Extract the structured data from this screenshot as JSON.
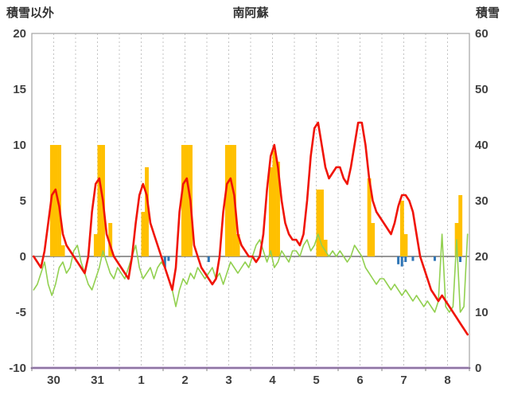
{
  "header": {
    "left_axis_title": "積雪以外",
    "title": "南阿蘇",
    "right_axis_title": "積雪"
  },
  "chart_data": {
    "type": "line",
    "title": "南阿蘇",
    "left_axis": {
      "label": "積雪以外",
      "min": -10,
      "max": 20,
      "ticks": [
        20,
        15,
        10,
        5,
        0,
        -5,
        -10
      ]
    },
    "right_axis": {
      "label": "積雪",
      "min": 0,
      "max": 60,
      "ticks": [
        60,
        50,
        40,
        30,
        20,
        10,
        0
      ]
    },
    "x_labels": [
      "30",
      "31",
      "1",
      "2",
      "3",
      "4",
      "5",
      "6",
      "7",
      "8"
    ],
    "points_per_day": 12,
    "grid": {
      "color": "#c3c3c3",
      "dash": "2 3",
      "half_day_lines": true
    },
    "zero_line_color": "#595959",
    "border_color": "#a3a3a3",
    "series": [
      {
        "id": "orange-bars",
        "type": "bar",
        "axis": "left",
        "color": "#ffc000",
        "values": [
          0,
          0,
          0,
          0,
          0,
          10,
          10,
          10,
          1,
          0,
          0,
          0,
          0,
          0,
          0,
          0,
          0,
          2,
          10,
          10,
          0,
          3,
          0,
          0,
          0,
          0,
          0,
          0,
          0,
          0,
          4,
          8,
          0,
          0,
          0,
          0,
          0,
          0,
          0,
          0,
          0,
          10,
          10,
          10,
          0,
          0,
          0,
          0,
          0,
          0,
          0,
          0,
          0,
          10,
          10,
          10,
          2,
          0,
          0,
          0,
          0,
          0,
          0,
          0,
          0,
          8,
          9.5,
          8.5,
          0,
          0,
          0,
          0,
          0,
          0,
          0,
          0,
          0,
          0,
          6,
          6,
          1.5,
          0,
          0,
          0,
          0,
          0,
          0,
          0,
          0,
          0,
          0,
          0,
          7,
          3,
          0,
          0,
          0,
          0,
          0,
          0,
          0,
          5,
          2,
          0,
          0,
          0,
          0,
          0,
          0,
          0,
          0,
          0,
          0,
          0,
          0,
          0,
          3,
          5.5,
          0,
          0
        ]
      },
      {
        "id": "blue-bars",
        "type": "bar-down",
        "axis": "left",
        "color": "#2e75b6",
        "values": [
          0,
          0,
          0,
          0,
          0,
          0,
          0,
          0,
          0,
          0,
          0,
          0,
          0,
          0,
          0,
          0,
          0,
          0,
          0,
          0,
          0,
          0,
          0,
          0,
          0,
          0,
          0,
          0,
          0,
          0,
          0,
          0,
          0,
          0,
          0,
          0,
          1,
          0.4,
          0,
          0,
          0,
          0,
          0,
          0,
          0,
          0,
          0,
          0,
          0.5,
          0,
          0,
          0,
          0,
          0,
          0,
          0,
          0,
          0,
          0,
          0,
          0,
          0,
          0,
          0,
          0,
          0,
          0,
          0,
          0,
          0,
          0,
          0,
          0,
          0,
          0,
          0,
          0,
          0,
          0,
          0,
          0,
          0,
          0,
          0,
          0,
          0,
          0,
          0,
          0,
          0,
          0,
          0,
          0,
          0,
          0,
          0,
          0,
          0,
          0,
          0,
          0.7,
          0.9,
          0.5,
          0,
          0.4,
          0,
          0,
          0,
          0,
          0,
          0.4,
          0,
          0,
          0,
          0,
          0,
          0,
          0.5,
          0,
          0
        ]
      },
      {
        "id": "green-line",
        "type": "line",
        "axis": "left",
        "color": "#92d050",
        "width": 1.6,
        "values": [
          -3,
          -2.5,
          -1.5,
          -0.5,
          -2.5,
          -3.5,
          -2.5,
          -1,
          -0.5,
          -1.5,
          -1,
          0.5,
          1,
          -0.5,
          -1.5,
          -2.5,
          -3,
          -2,
          -1,
          0.5,
          -0.5,
          -1.5,
          -2,
          -1,
          -1.5,
          -2,
          -1,
          0,
          1,
          -1,
          -2,
          -1.5,
          -1,
          -2,
          -1,
          -0.5,
          -1,
          -2,
          -3,
          -4.5,
          -3,
          -2,
          -2.5,
          -1.5,
          -2,
          -1,
          -1.5,
          -2,
          -1.5,
          -1,
          -2,
          -1.5,
          -2.5,
          -1.5,
          -0.5,
          -1,
          -1.5,
          -1,
          -0.5,
          -1,
          0,
          1,
          1.5,
          0.5,
          -0.5,
          0.5,
          -1,
          -0.5,
          0.5,
          0,
          -0.5,
          0.5,
          0.5,
          0,
          1,
          1.5,
          0.5,
          1,
          2,
          1,
          0.5,
          0,
          0.5,
          0,
          0.5,
          0,
          -0.5,
          0,
          1,
          0.5,
          0,
          -1,
          -1.5,
          -2,
          -2.5,
          -2,
          -2,
          -2.5,
          -3,
          -2.5,
          -3,
          -3.5,
          -3,
          -3.5,
          -4,
          -3.5,
          -4,
          -4.5,
          -4,
          -4.5,
          -5,
          -4,
          2,
          -4.5,
          -5,
          -4.5,
          1.5,
          -5,
          -4.5,
          2
        ]
      },
      {
        "id": "red-line",
        "type": "line",
        "axis": "left",
        "color": "#f01408",
        "width": 2.6,
        "values": [
          0,
          -0.5,
          -1,
          0.5,
          3,
          5.5,
          6,
          4.5,
          2,
          1,
          0.5,
          0,
          -0.5,
          -1,
          -1.5,
          0,
          4,
          6.5,
          7,
          5,
          2,
          1,
          0,
          -0.5,
          -1,
          -1.5,
          -2,
          0,
          3,
          5.5,
          6.5,
          5.5,
          3,
          2,
          1,
          0,
          -1,
          -2,
          -3,
          -1,
          4,
          6.5,
          7,
          5,
          1,
          0,
          -1,
          -1.5,
          -2,
          -2.5,
          -2,
          0,
          4,
          6.5,
          7,
          5.5,
          2,
          1,
          0.5,
          0,
          0,
          -0.5,
          0,
          2,
          6,
          9,
          10,
          8,
          5,
          3,
          2,
          1.5,
          1.5,
          1,
          2,
          5,
          9,
          11.5,
          12,
          10,
          8,
          7,
          7.5,
          8,
          8,
          7,
          6.5,
          8,
          10,
          12,
          12,
          10,
          7,
          5,
          4,
          3.5,
          3,
          2.5,
          2,
          3,
          4.5,
          5.5,
          5.5,
          5,
          4,
          2,
          0,
          -1,
          -2,
          -3,
          -3.5,
          -4,
          -3.5,
          -4,
          -4.5,
          -5,
          -5.5,
          -6,
          -6.5,
          -7
        ]
      },
      {
        "id": "purple-line",
        "type": "line",
        "axis": "right",
        "color": "#7030a0",
        "width": 2.6,
        "constant": 0
      }
    ]
  }
}
